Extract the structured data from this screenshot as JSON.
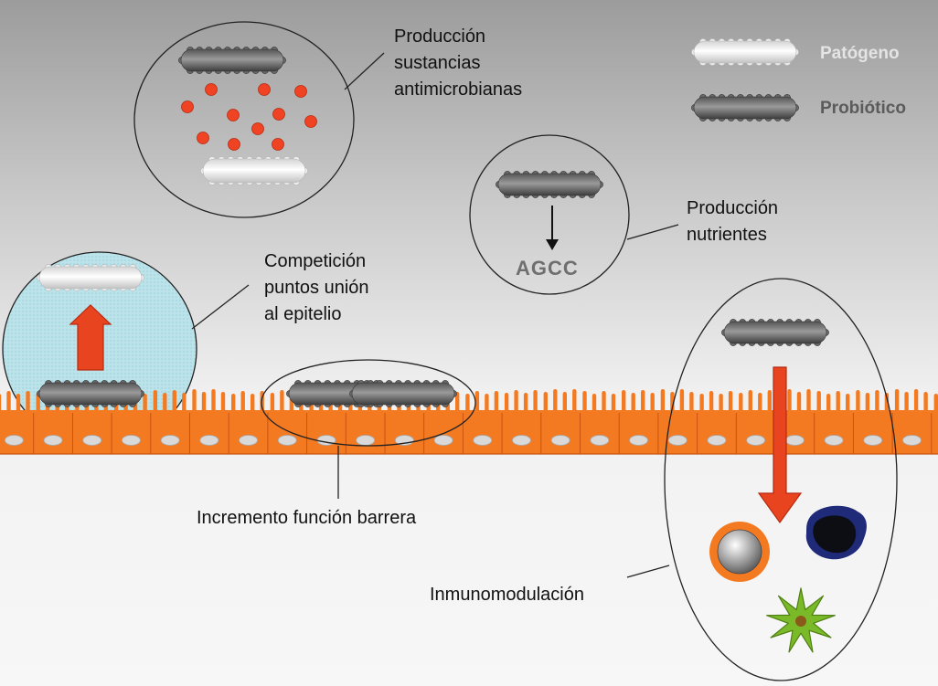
{
  "labels": {
    "antimicrobial": "Producción\nsustancias\nantimicrobianas",
    "competition": "Competición\npuntos unión\nal epitelio",
    "nutrients": "Producción\nnutrientes",
    "barrier": "Incremento función barrera",
    "immuno": "Inmunomodulación",
    "agcc": "AGCC"
  },
  "legend": {
    "pathogen": "Patógeno",
    "probiotic": "Probiótico"
  },
  "colors": {
    "epithelium": "#f47a22",
    "arrow": "#e8441f",
    "antimicrobial_dots": "#ef4323",
    "legend_pathogen_text": "#e4e4e4",
    "legend_probiotic_text": "#5b5b5b",
    "immune_green_cell": "#7ab928",
    "immune_blue_cell": "#1e2c7e"
  }
}
